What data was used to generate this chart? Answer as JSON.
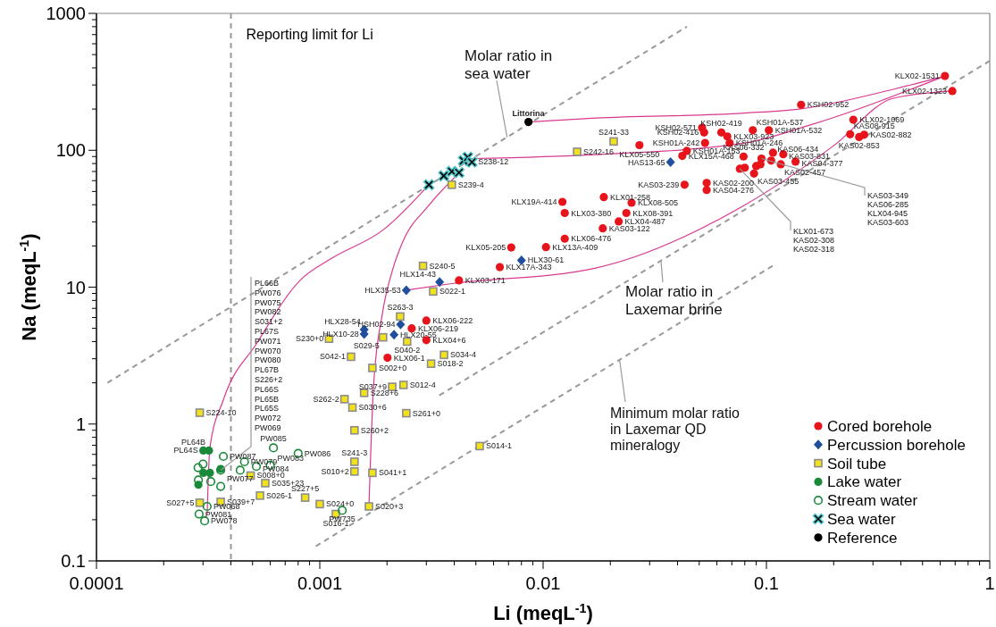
{
  "chart_data": {
    "type": "scatter",
    "xlabel": "Li (meqL$^{-1}$)",
    "ylabel": "Na (meqL$^{-1}$)",
    "log": "xy",
    "legend": "bottom right",
    "xlim": [
      0.0001,
      1
    ],
    "ylim": [
      0.1,
      1000
    ],
    "xticks": [
      0.0001,
      {
        "value": 0.0002,
        "label": null
      },
      {
        "value": 0.0003,
        "label": null
      },
      {
        "value": 0.0004,
        "label": null
      },
      {
        "value": 0.0005,
        "label": null
      },
      {
        "value": 0.0006,
        "label": null
      },
      {
        "value": 0.0007,
        "label": null
      },
      {
        "value": 0.0008,
        "label": null
      },
      {
        "value": 0.0009,
        "label": null
      },
      0.001,
      {
        "value": 0.002,
        "label": null
      },
      {
        "value": 0.003,
        "label": null
      },
      {
        "value": 0.004,
        "label": null
      },
      {
        "value": 0.005,
        "label": null
      },
      {
        "value": 0.006,
        "label": null
      },
      {
        "value": 0.007,
        "label": null
      },
      {
        "value": 0.008,
        "label": null
      },
      {
        "value": 0.009,
        "label": null
      },
      0.01,
      {
        "value": 0.02,
        "label": null
      },
      {
        "value": 0.03,
        "label": null
      },
      {
        "value": 0.04,
        "label": null
      },
      {
        "value": 0.05,
        "label": null
      },
      {
        "value": 0.06,
        "label": null
      },
      {
        "value": 0.07,
        "label": null
      },
      {
        "value": 0.08,
        "label": null
      },
      {
        "value": 0.09,
        "label": null
      },
      0.1,
      {
        "value": 0.2,
        "label": null
      },
      {
        "value": 0.3,
        "label": null
      },
      {
        "value": 0.4,
        "label": null
      },
      {
        "value": 0.5,
        "label": null
      },
      {
        "value": 0.6,
        "label": null
      },
      {
        "value": 0.7,
        "label": null
      },
      {
        "value": 0.8,
        "label": null
      },
      {
        "value": 0.9,
        "label": null
      },
      1
    ],
    "yticks": [
      0.1,
      {
        "value": 0.2,
        "label": null
      },
      {
        "value": 0.3,
        "label": null
      },
      {
        "value": 0.4,
        "label": null
      },
      {
        "value": 0.5,
        "label": null
      },
      {
        "value": 0.6,
        "label": null
      },
      {
        "value": 0.7,
        "label": null
      },
      {
        "value": 0.8,
        "label": null
      },
      {
        "value": 0.9,
        "label": null
      },
      1,
      {
        "value": 2,
        "label": null
      },
      {
        "value": 3,
        "label": null
      },
      {
        "value": 4,
        "label": null
      },
      {
        "value": 5,
        "label": null
      },
      {
        "value": 6,
        "label": null
      },
      {
        "value": 7,
        "label": null
      },
      {
        "value": 8,
        "label": null
      },
      {
        "value": 9,
        "label": null
      },
      10,
      {
        "value": 20,
        "label": null
      },
      {
        "value": 30,
        "label": null
      },
      {
        "value": 40,
        "label": null
      },
      {
        "value": 50,
        "label": null
      },
      {
        "value": 60,
        "label": null
      },
      {
        "value": 70,
        "label": null
      },
      {
        "value": 80,
        "label": null
      },
      {
        "value": 90,
        "label": null
      },
      100,
      {
        "value": 200,
        "label": null
      },
      {
        "value": 300,
        "label": null
      },
      {
        "value": 400,
        "label": null
      },
      {
        "value": 500,
        "label": null
      },
      {
        "value": 600,
        "label": null
      },
      {
        "value": 700,
        "label": null
      },
      {
        "value": 800,
        "label": null
      },
      {
        "value": 900,
        "label": null
      },
      1000
    ],
    "ref_lines": [
      {
        "axis": "x",
        "value": 0.0004,
        "label": "Reporting limit for Li",
        "color": "#999999",
        "line_style": "dashed"
      }
    ],
    "annotations": [
      {
        "text": "Molar ratio in\nsea water",
        "x": 0.0069,
        "y": 124
      },
      {
        "text": "Molar ratio in\nLaxemar brine",
        "x": 0.0337,
        "y": 15.6
      },
      {
        "text": "Minimum molar ratio\nin Laxemar QD\nmineralogy",
        "x": 0.022,
        "y": 2.94
      },
      {
        "text": "PL66B",
        "x": 0.00036,
        "y": 0.46
      },
      "PW076",
      "PW075",
      "PW082",
      "S031+2",
      "PL67S",
      "PW071",
      "PW070",
      "PW080",
      "PL67B",
      "S226+2",
      "PL66S",
      "PL65B",
      "PL65S",
      "PW072",
      "PW069",
      {
        "text": "KLX01-673",
        "x": 0.076,
        "y": 73.3
      },
      "KAS02-308",
      "KAS02-318",
      {
        "text": "KAS03-349",
        "x": 0.095,
        "y": 87
      },
      "KAS06-285",
      "KLX04-945",
      "KAS03-603"
    ],
    "series": [
      {
        "type": "line",
        "color": "#999999",
        "line_style": "dashed",
        "marker": "none",
        "x": [
          0.000112,
          0.044
        ],
        "values": [
          2.0,
          800
        ]
      },
      {
        "type": "line",
        "color": "#999999",
        "line_style": "dashed",
        "marker": "none",
        "x": [
          0.00343,
          1.0
        ],
        "values": [
          1.62,
          450
        ]
      },
      {
        "type": "line",
        "color": "#999999",
        "line_style": "dashed",
        "marker": "none",
        "x": [
          0.00096,
          0.108
        ],
        "values": [
          0.128,
          14.5
        ]
      },
      {
        "type": "line",
        "color": "#d8398f",
        "line_style": "solid",
        "marker": "none",
        "x": [
          0.0086,
          0.0172,
          0.0795,
          0.143,
          0.37,
          0.63
        ],
        "values": [
          161,
          172,
          187,
          201,
          279,
          349
        ]
      },
      {
        "type": "line",
        "color": "#d8398f",
        "line_style": "solid",
        "marker": "none",
        "x": [
          0.0048,
          0.0172,
          0.0797,
          0.157,
          0.63
        ],
        "values": [
          87,
          93,
          113,
          153,
          349
        ]
      },
      {
        "type": "line",
        "color": "#d8398f",
        "line_style": "solid",
        "marker": "none",
        "x": [
          0.00244,
          0.0037,
          0.0172,
          0.0795,
          0.2,
          0.37,
          0.68
        ],
        "values": [
          9.5,
          10.5,
          13.8,
          39.6,
          108,
          240,
          271
        ]
      },
      {
        "type": "line",
        "color": "#d8398f",
        "line_style": "solid",
        "marker": "none",
        "x": [
          0.000313,
          0.000322,
          0.00037,
          0.00052,
          0.00082,
          0.00112,
          0.00194,
          0.00308
        ],
        "values": [
          0.216,
          0.67,
          1.5,
          3.85,
          11.3,
          16.1,
          26.5,
          56
        ]
      },
      {
        "type": "line",
        "color": "#d8398f",
        "line_style": "solid",
        "marker": "none",
        "x": [
          0.00166,
          0.00174,
          0.00191,
          0.00213,
          0.00233,
          0.00308,
          0.0042
        ],
        "values": [
          0.25,
          1.87,
          6.5,
          13.8,
          20.7,
          39.6,
          68
        ]
      },
      {
        "name": "Cored borehole",
        "color": "#e8141c",
        "marker": "circle",
        "x": [
          0.143,
          0.0515,
          0.0526,
          0.0531,
          0.0628,
          0.0668,
          0.0684,
          0.0869,
          0.1025,
          0.027,
          0.044,
          0.042,
          0.107,
          0.079,
          0.119,
          0.135,
          0.116,
          0.105,
          0.095,
          0.094,
          0.09,
          0.088,
          0.076,
          0.08,
          0.043,
          0.054,
          0.054,
          0.0122,
          0.0187,
          0.0249,
          0.0125,
          0.0236,
          0.0218,
          0.0185,
          0.0125,
          0.0103,
          0.0072,
          0.0064,
          0.0042,
          0.003,
          0.00258,
          0.003,
          0.00201,
          0.63,
          0.68,
          0.245,
          0.237,
          0.274,
          0.26
        ],
        "values": [
          215,
          146,
          135,
          113,
          135,
          126,
          113,
          140,
          140,
          109,
          99,
          91,
          96,
          90,
          93.5,
          82.6,
          79,
          84,
          87,
          79,
          76.7,
          67.6,
          73.3,
          74.6,
          56,
          57.7,
          51.3,
          42,
          45.5,
          41.4,
          34.8,
          34.8,
          30.2,
          26.9,
          22.6,
          19.6,
          19.5,
          14,
          11.2,
          5.7,
          5.0,
          4.1,
          3.05,
          349,
          271,
          167,
          131,
          130,
          125
        ],
        "value_labels": [
          "KSH02-952",
          "KSH02-571",
          "KSH02-416",
          "KSH01A-242",
          "KSH02-419",
          "KLX03-923",
          "KSH01A-246",
          "KSH01A-537",
          "KSH01A-532",
          "KLX05-550",
          "KSH01A-153",
          "KLX15A-468",
          "KAS06-434",
          "KAS06-332",
          "KAS03-831",
          "KAS04-377",
          "KAS02-457",
          null,
          null,
          null,
          null,
          "KAS03-455",
          null,
          null,
          "KAS03-239",
          "KAS02-200",
          "KAS04-276",
          "KLX19A-414",
          "KLX01-258",
          "KLX08-505",
          "KLX03-380",
          "KLX08-391",
          "KLX04-487",
          "KAS03-122",
          "KLX06-476",
          "KLX13A-409",
          "KLX05-205",
          "KLX17A-343",
          "KLX03-171",
          "KLX06-222",
          "KLX06-219",
          "KLX04+6",
          "KLX06-1",
          "KLX02-1531",
          "KLX02-1323",
          "KLX02-1069",
          "KAS08-915",
          "KAS02-882",
          "KAS02-853"
        ]
      },
      {
        "name": "Percussion borehole",
        "color": "#1f4e9c",
        "marker": "diamond",
        "x": [
          0.00244,
          0.00344,
          0.008,
          0.00158,
          0.00158,
          0.0023,
          0.00215,
          0.0372
        ],
        "values": [
          9.5,
          10.9,
          15.7,
          4.9,
          4.55,
          5.35,
          4.5,
          81.9
        ],
        "value_labels": [
          "HLX35-53",
          "HLX14-43",
          "HLX30-61",
          "HLX28-54",
          "HLX10-28",
          "HSH02-94",
          "HLX20-55",
          "HAS13-65"
        ]
      },
      {
        "name": "Soil tube",
        "color": "#f2e21c",
        "marker": "square",
        "x": [
          0.00029,
          0.0011,
          0.00138,
          0.00192,
          0.00229,
          0.00246,
          0.00322,
          0.0036,
          0.00315,
          0.00172,
          0.00211,
          0.00237,
          0.00158,
          0.00129,
          0.0014,
          0.00244,
          0.00143,
          0.00143,
          0.00143,
          0.00172,
          0.00049,
          0.00057,
          0.00054,
          0.00086,
          0.001,
          0.00118,
          0.00166,
          0.00036,
          0.00029,
          0.0052,
          0.0029,
          0.0039,
          0.0142,
          0.0207
        ],
        "values": [
          1.21,
          4.2,
          3.1,
          4.3,
          6.1,
          4.0,
          9.3,
          3.2,
          2.76,
          2.57,
          1.87,
          1.93,
          1.69,
          1.52,
          1.32,
          1.2,
          0.9,
          0.53,
          0.45,
          0.44,
          0.42,
          0.37,
          0.3,
          0.29,
          0.26,
          0.22,
          0.25,
          0.27,
          0.266,
          0.69,
          14.3,
          56,
          97.5,
          116
        ],
        "value_labels": [
          "S224-10",
          "S230+0",
          "S042-1",
          "S029-5",
          "S263-3",
          "S040-2",
          "S022-1",
          "S034-4",
          "S018-2",
          "S002+0",
          "S037+9",
          "S012-4",
          "S228+6",
          "S262-2",
          "S030+6",
          "S261+0",
          "S260+2",
          "S241-3",
          "S010+2",
          "S041+1",
          "S008+0",
          "S035+23",
          "S026-1",
          "S227+5",
          "S024+0",
          "S016-1",
          "S020+3",
          "S039+7",
          "S027+5",
          "S014-1",
          "S240-5",
          "S239-4",
          "S242-16",
          "S241-33"
        ]
      },
      {
        "name": "Lake water",
        "color": "#1a8a3a",
        "marker": "circle",
        "x": [
          0.000319,
          0.000301,
          0.000301,
          0.000322,
          0.000286,
          0.00036
        ],
        "values": [
          0.64,
          0.64,
          0.44,
          0.44,
          0.36,
          0.47
        ],
        "value_labels": [
          "PL64B",
          "PL64S",
          null,
          null,
          null,
          null
        ]
      },
      {
        "name": "Stream water",
        "color": "#1a8a3a",
        "marker": "circle",
        "x": [
          0.00062,
          0.0008,
          0.00037,
          0.00046,
          0.0006,
          0.00052,
          0.00044,
          0.00036,
          0.0003,
          0.000285,
          0.000286,
          0.000325,
          0.00036,
          0.000313,
          0.000288,
          0.000305,
          0.00126
        ],
        "values": [
          0.67,
          0.61,
          0.58,
          0.53,
          0.5,
          0.49,
          0.46,
          0.46,
          0.51,
          0.48,
          0.39,
          0.38,
          0.35,
          0.25,
          0.22,
          0.196,
          0.234
        ],
        "value_labels": [
          "PW085",
          "PW086",
          "PW087",
          "PW079",
          "PW083",
          "PW084",
          "PW077",
          null,
          null,
          null,
          null,
          null,
          null,
          "PW068",
          "PW081",
          "PW078",
          "PW735"
        ]
      },
      {
        "name": "Sea water",
        "color": "#4fc3c8",
        "marker": "cross",
        "x": [
          0.00308,
          0.00359,
          0.0039,
          0.0042,
          0.0044,
          0.0046,
          0.0048
        ],
        "values": [
          56,
          65,
          70,
          68.7,
          84,
          89,
          82
        ],
        "value_labels": [
          null,
          null,
          null,
          null,
          null,
          null,
          "S238-12"
        ]
      },
      {
        "name": "Reference",
        "color": "#000000",
        "marker": "circle",
        "x": [
          0.0086
        ],
        "values": [
          161
        ],
        "value_labels": [
          "Littorina"
        ]
      }
    ]
  }
}
